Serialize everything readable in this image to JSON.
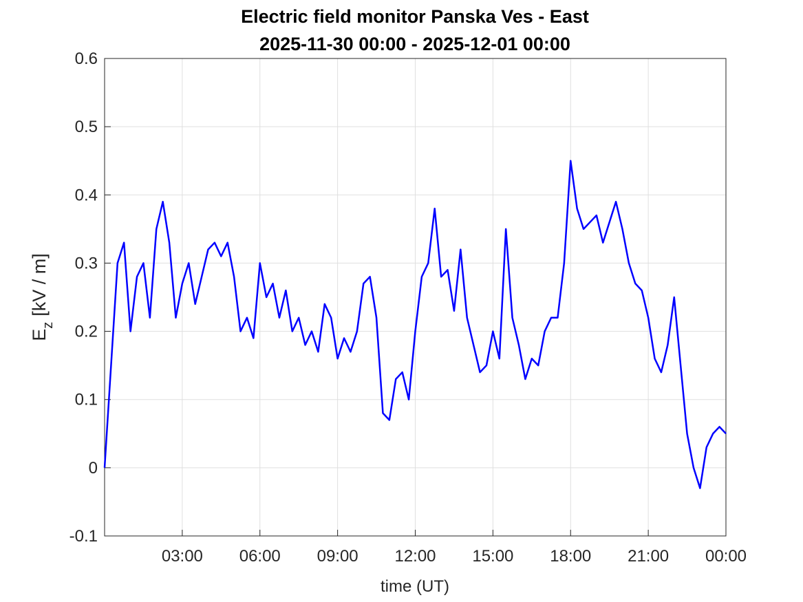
{
  "chart_data": {
    "type": "line",
    "title": [
      "Electric field monitor Panska Ves - East",
      "2025-11-30 00:00 - 2025-12-01 00:00"
    ],
    "xlabel": "time (UT)",
    "ylabel": {
      "symbol": "E",
      "subscript": "z",
      "unit": "[kV / m]"
    },
    "x": [
      0,
      0.25,
      0.5,
      0.75,
      1,
      1.25,
      1.5,
      1.75,
      2,
      2.25,
      2.5,
      2.75,
      3,
      3.25,
      3.5,
      3.75,
      4,
      4.25,
      4.5,
      4.75,
      5,
      5.25,
      5.5,
      5.75,
      6,
      6.25,
      6.5,
      6.75,
      7,
      7.25,
      7.5,
      7.75,
      8,
      8.25,
      8.5,
      8.75,
      9,
      9.25,
      9.5,
      9.75,
      10,
      10.25,
      10.5,
      10.75,
      11,
      11.25,
      11.5,
      11.75,
      12,
      12.25,
      12.5,
      12.75,
      13,
      13.25,
      13.5,
      13.75,
      14,
      14.25,
      14.5,
      14.75,
      15,
      15.25,
      15.5,
      15.75,
      16,
      16.25,
      16.5,
      16.75,
      17,
      17.25,
      17.5,
      17.75,
      18,
      18.25,
      18.5,
      18.75,
      19,
      19.25,
      19.5,
      19.75,
      20,
      20.25,
      20.5,
      20.75,
      21,
      21.25,
      21.5,
      21.75,
      22,
      22.25,
      22.5,
      22.75,
      23,
      23.25,
      23.5,
      23.75,
      24
    ],
    "series": [
      {
        "name": "Ez",
        "color": "#0000ff",
        "values": [
          0.0,
          0.15,
          0.3,
          0.33,
          0.2,
          0.28,
          0.3,
          0.22,
          0.35,
          0.39,
          0.33,
          0.22,
          0.27,
          0.3,
          0.24,
          0.28,
          0.32,
          0.33,
          0.31,
          0.33,
          0.28,
          0.2,
          0.22,
          0.19,
          0.3,
          0.25,
          0.27,
          0.22,
          0.26,
          0.2,
          0.22,
          0.18,
          0.2,
          0.17,
          0.24,
          0.22,
          0.16,
          0.19,
          0.17,
          0.2,
          0.27,
          0.28,
          0.22,
          0.08,
          0.07,
          0.13,
          0.14,
          0.1,
          0.2,
          0.28,
          0.3,
          0.38,
          0.28,
          0.29,
          0.23,
          0.32,
          0.22,
          0.18,
          0.14,
          0.15,
          0.2,
          0.16,
          0.35,
          0.22,
          0.18,
          0.13,
          0.16,
          0.15,
          0.2,
          0.22,
          0.22,
          0.3,
          0.45,
          0.38,
          0.35,
          0.36,
          0.37,
          0.33,
          0.36,
          0.39,
          0.35,
          0.3,
          0.27,
          0.26,
          0.22,
          0.16,
          0.14,
          0.18,
          0.25,
          0.15,
          0.05,
          0.0,
          -0.03,
          0.03,
          0.05,
          0.06,
          0.05
        ]
      }
    ],
    "xlim": [
      0,
      24
    ],
    "xticks": [
      {
        "value": 3,
        "label": "03:00"
      },
      {
        "value": 6,
        "label": "06:00"
      },
      {
        "value": 9,
        "label": "09:00"
      },
      {
        "value": 12,
        "label": "12:00"
      },
      {
        "value": 15,
        "label": "15:00"
      },
      {
        "value": 18,
        "label": "18:00"
      },
      {
        "value": 21,
        "label": "21:00"
      },
      {
        "value": 24,
        "label": "00:00"
      }
    ],
    "ylim": [
      -0.1,
      0.6
    ],
    "yticks": [
      -0.1,
      0,
      0.1,
      0.2,
      0.3,
      0.4,
      0.5,
      0.6
    ],
    "grid": true
  }
}
